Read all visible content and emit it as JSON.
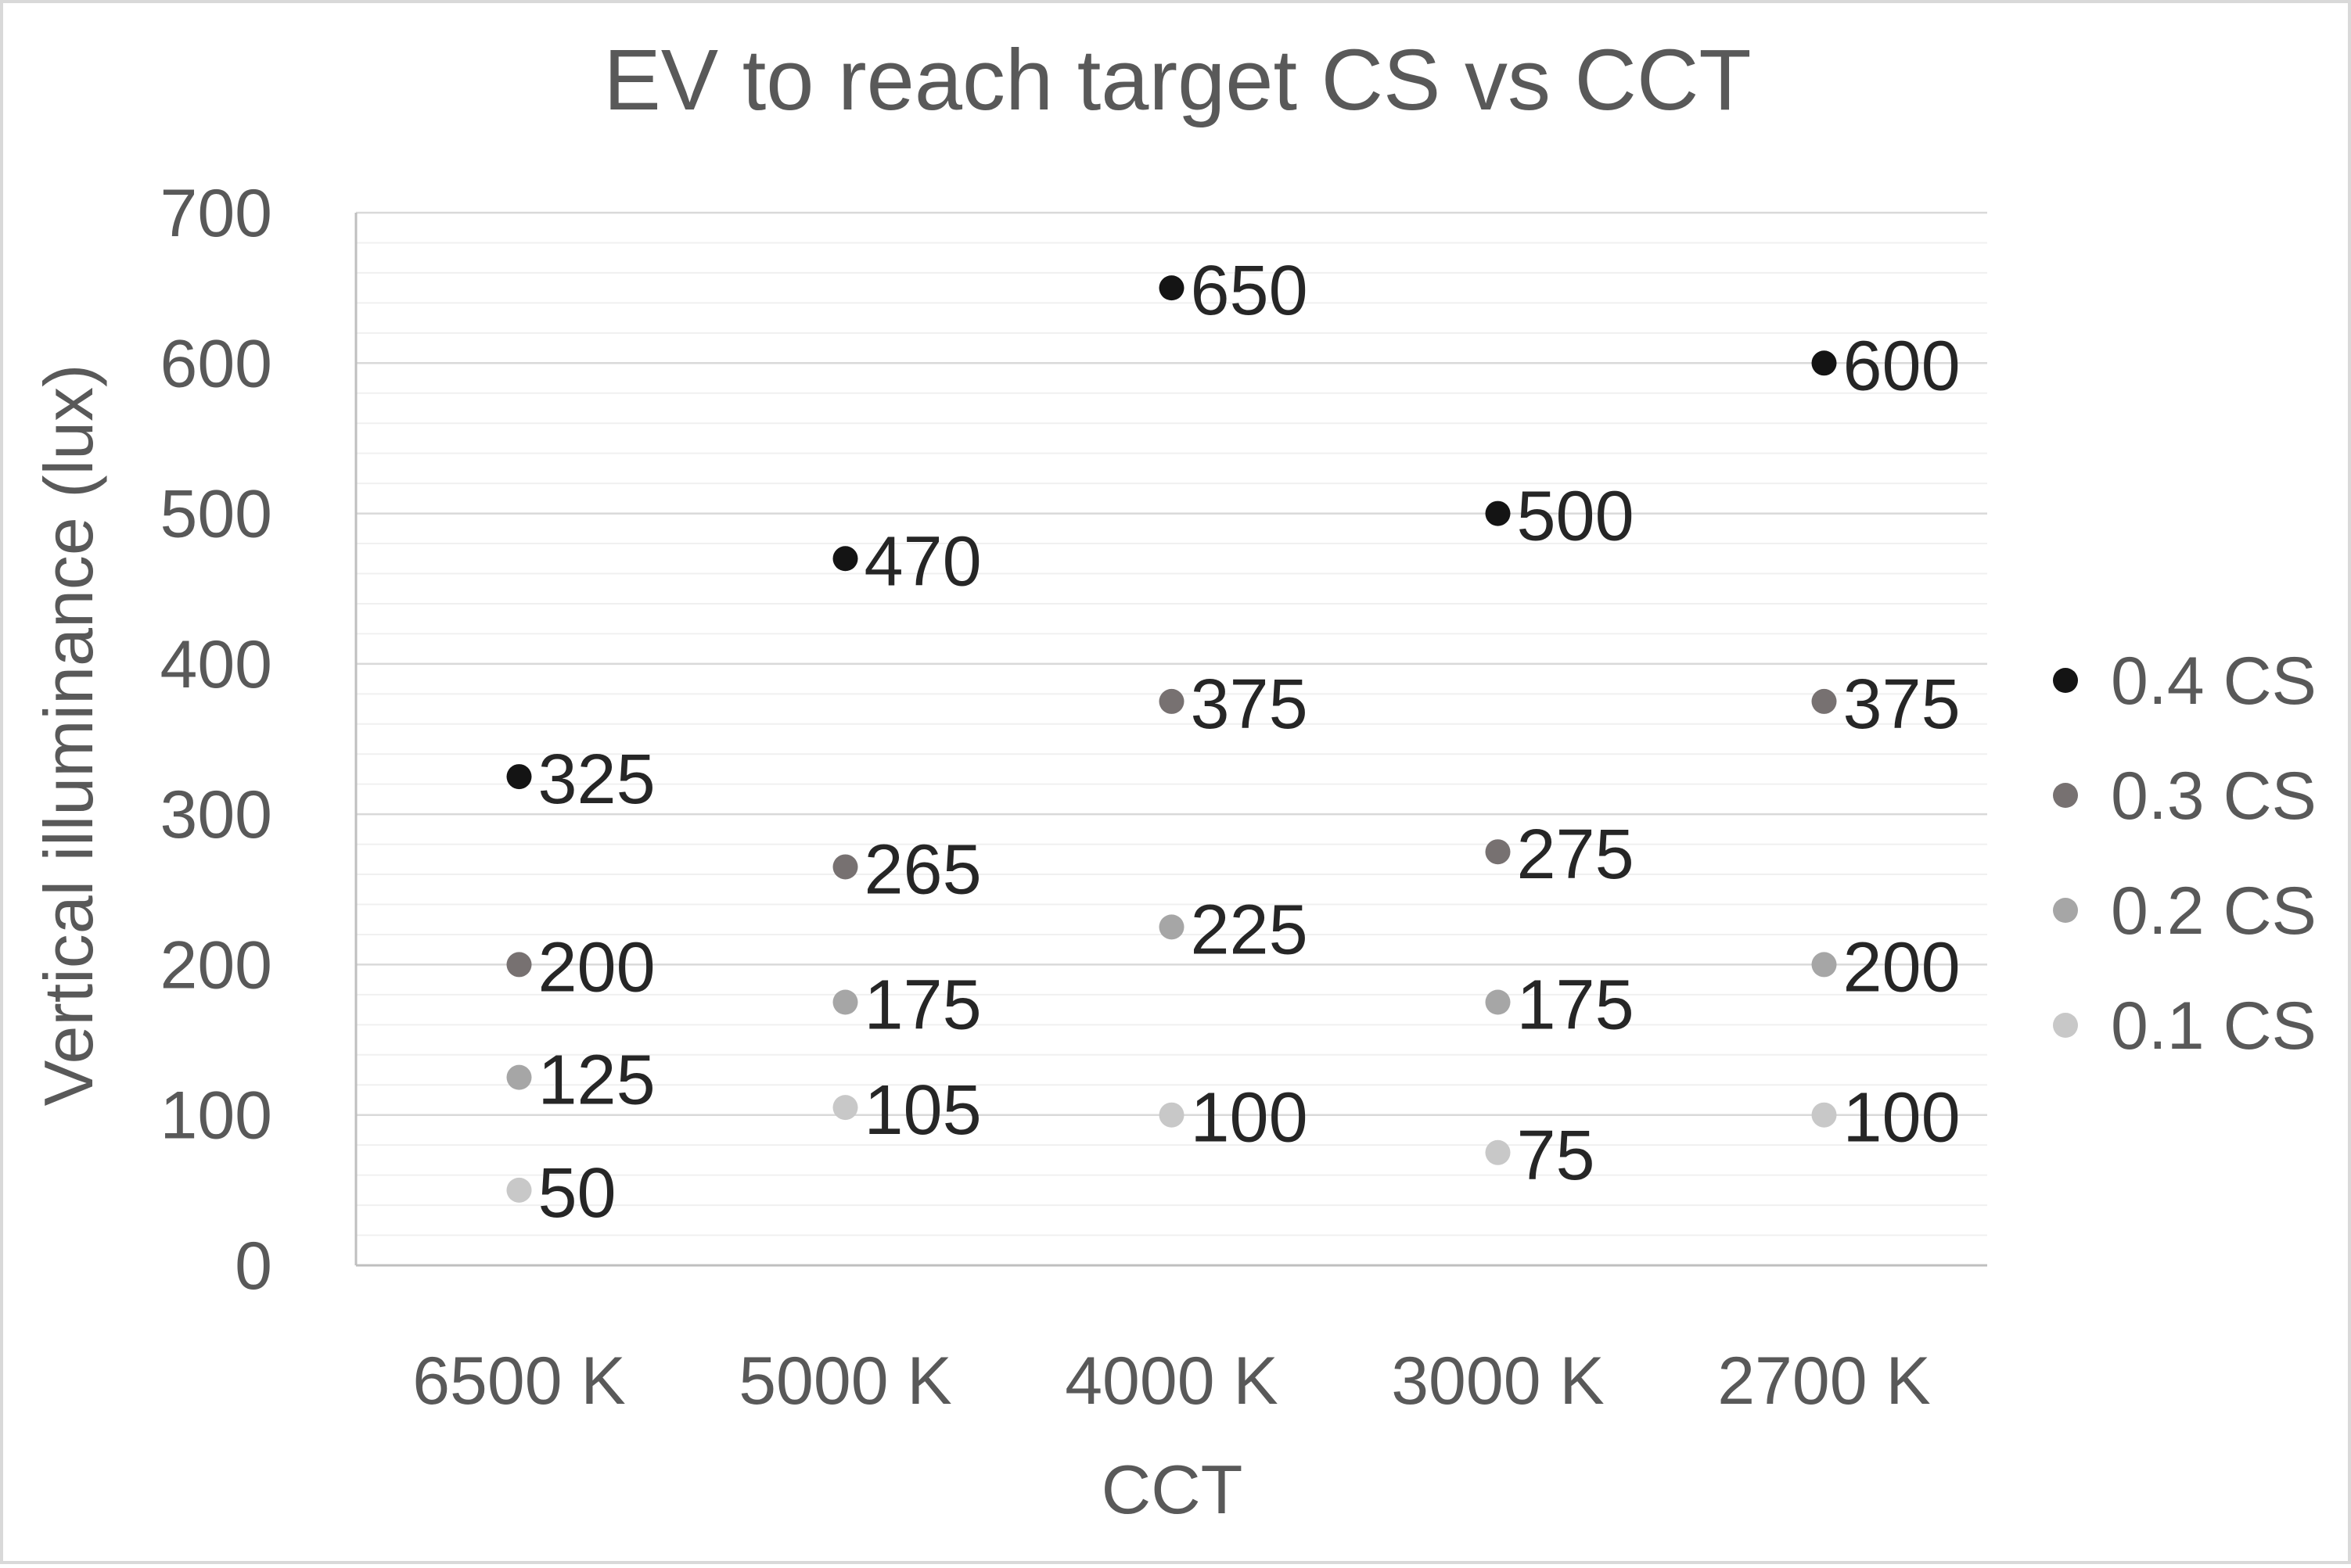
{
  "chart_data": {
    "type": "scatter",
    "title": "EV to reach target CS vs CCT",
    "xlabel": "CCT",
    "ylabel": "Vertical illuminance (lux)",
    "categories": [
      "6500 K",
      "5000 K",
      "4000 K",
      "3000 K",
      "2700 K"
    ],
    "ylim": [
      0,
      700
    ],
    "yticks": [
      0,
      100,
      200,
      300,
      400,
      500,
      600,
      700
    ],
    "yticks_text": [
      "0",
      "100",
      "200",
      "300",
      "400",
      "500",
      "600",
      "700"
    ],
    "grid": {
      "major": true,
      "minor": true
    },
    "legend_position": "right",
    "series": [
      {
        "name": "0.4 CS",
        "color": "#141414",
        "values": [
          325,
          470,
          650,
          500,
          600
        ],
        "labels": [
          "325",
          "470",
          "650",
          "500",
          "600"
        ]
      },
      {
        "name": "0.3 CS",
        "color": "#777171",
        "values": [
          200,
          265,
          375,
          275,
          375
        ],
        "labels": [
          "200",
          "265",
          "375",
          "275",
          "375"
        ]
      },
      {
        "name": "0.2 CS",
        "color": "#a6a6a6",
        "values": [
          125,
          175,
          225,
          175,
          200
        ],
        "labels": [
          "125",
          "175",
          "225",
          "175",
          "200"
        ]
      },
      {
        "name": "0.1 CS",
        "color": "#c8c8c8",
        "values": [
          50,
          105,
          100,
          75,
          100
        ],
        "labels": [
          "50",
          "105",
          "100",
          "75",
          "100"
        ]
      }
    ],
    "colors": {
      "text": "#595959",
      "label_text": "#262626",
      "grid_major": "#d9d9d9",
      "grid_minor": "#f0f0f0",
      "axis": "#bfbfbf"
    }
  }
}
